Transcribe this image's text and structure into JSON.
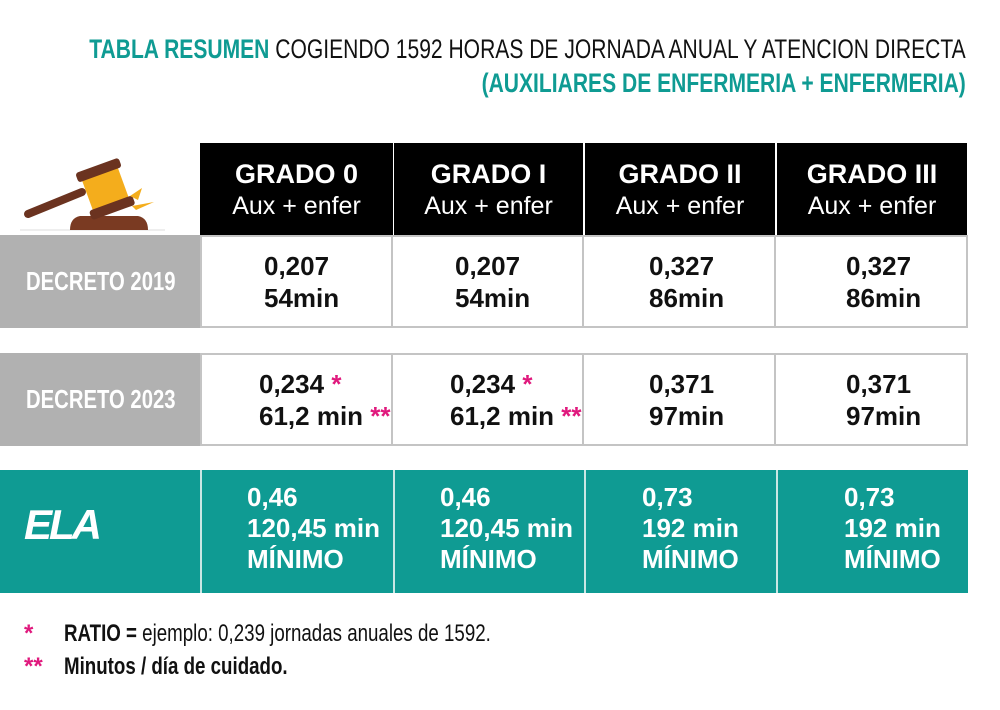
{
  "title": {
    "highlight": "TABLA RESUMEN",
    "rest": " COGIENDO 1592 HORAS DE JORNADA ANUAL Y ATENCION DIRECTA",
    "subtitle": "(AUXILIARES DE ENFERMERIA + ENFERMERIA)"
  },
  "columns": [
    {
      "grado": "GRADO 0",
      "sub": "Aux + enfer"
    },
    {
      "grado": "GRADO I",
      "sub": "Aux + enfer"
    },
    {
      "grado": "GRADO II",
      "sub": "Aux + enfer"
    },
    {
      "grado": "GRADO III",
      "sub": "Aux + enfer"
    }
  ],
  "rows": {
    "d2019": {
      "label": "DECRETO 2019",
      "cells": [
        {
          "a": "0,207",
          "b": "54min"
        },
        {
          "a": "0,207",
          "b": "54min"
        },
        {
          "a": "0,327",
          "b": "86min"
        },
        {
          "a": "0,327",
          "b": "86min"
        }
      ]
    },
    "d2023": {
      "label": "DECRETO 2023",
      "cells": [
        {
          "a": "0,234",
          "am": "*",
          "b": "61,2 min",
          "bm": "**"
        },
        {
          "a": "0,234",
          "am": "*",
          "b": "61,2 min",
          "bm": "**"
        },
        {
          "a": "0,371",
          "b": "97min"
        },
        {
          "a": "0,371",
          "b": "97min"
        }
      ]
    },
    "ela": {
      "label": "ELA",
      "cells": [
        {
          "a": "0,46",
          "b": "120,45 min",
          "c": "MÍNIMO"
        },
        {
          "a": "0,46",
          "b": "120,45 min",
          "c": "MÍNIMO"
        },
        {
          "a": "0,73",
          "b": "192 min",
          "c": "MÍNIMO"
        },
        {
          "a": "0,73",
          "b": "192 min",
          "c": "MÍNIMO"
        }
      ]
    }
  },
  "footnotes": [
    {
      "mark": "*",
      "bold": "RATIO =",
      "text": " ejemplo: 0,239 jornadas anuales de 1592."
    },
    {
      "mark": "**",
      "bold": "Minutos / día de cuidado.",
      "text": ""
    }
  ],
  "colors": {
    "teal": "#0f9b93",
    "pink": "#e0197d",
    "gray": "#b1b1b1"
  }
}
